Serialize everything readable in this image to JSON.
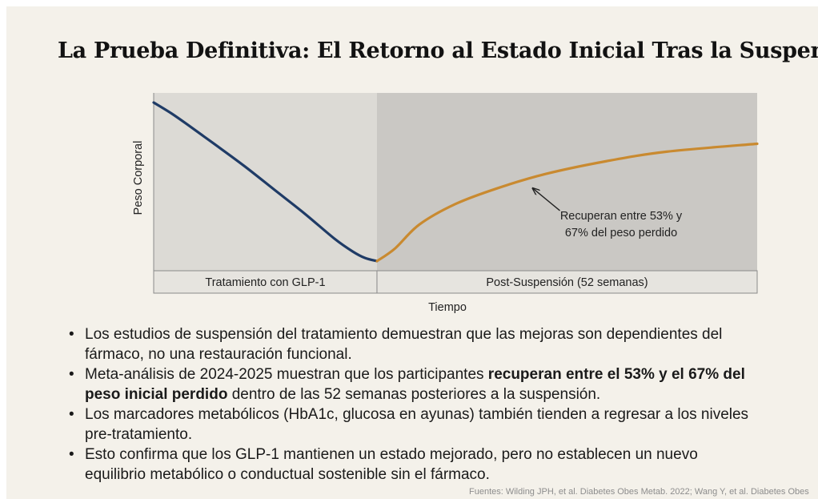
{
  "title": "La Prueba Definitiva: El Retorno al Estado Inicial Tras la Suspensió",
  "chart_data": {
    "type": "line",
    "xlabel": "Tiempo",
    "ylabel": "Peso Corporal",
    "x_axis_units": "fracción del eje temporal",
    "regions": [
      {
        "label": "Tratamiento con GLP-1",
        "x_start": 0,
        "x_end": 0.37,
        "fill": "#dcdad5"
      },
      {
        "label": "Post-Suspensión (52 semanas)",
        "x_start": 0.37,
        "x_end": 1.0,
        "fill": "#cac8c4"
      }
    ],
    "series": [
      {
        "name": "Tratamiento",
        "color": "#1f3b66",
        "x": [
          0,
          0.03,
          0.06,
          0.1,
          0.15,
          0.2,
          0.25,
          0.3,
          0.33,
          0.35,
          0.37
        ],
        "y": [
          1.0,
          0.93,
          0.85,
          0.74,
          0.6,
          0.45,
          0.3,
          0.14,
          0.06,
          0.02,
          0.0
        ]
      },
      {
        "name": "Post-Suspensión",
        "color": "#c98a30",
        "x": [
          0.37,
          0.4,
          0.44,
          0.5,
          0.57,
          0.65,
          0.75,
          0.85,
          1.0
        ],
        "y": [
          0.0,
          0.08,
          0.23,
          0.36,
          0.46,
          0.55,
          0.63,
          0.69,
          0.74
        ]
      }
    ],
    "annotation": {
      "lines": [
        "Recuperan entre 53% y",
        "67% del peso perdido"
      ],
      "arrow_target": {
        "x": 0.62,
        "y": 0.48
      }
    },
    "ylim": [
      0,
      1
    ],
    "xlim": [
      0,
      1
    ]
  },
  "bullets": [
    {
      "line1": [
        {
          "text": "Los estudios de suspensión del tratamiento demuestran que las mejoras son dependientes del"
        }
      ],
      "line2": [
        {
          "text": "fármaco, no una restauración funcional."
        }
      ]
    },
    {
      "line1": [
        {
          "text": "Meta-análisis de 2024-2025 muestran que los participantes "
        },
        {
          "text": "recuperan entre el 53% y el 67% del",
          "bold": true
        }
      ],
      "line2": [
        {
          "text": "peso inicial perdido",
          "bold": true
        },
        {
          "text": " dentro de las 52 semanas posteriores a la suspensión."
        }
      ]
    },
    {
      "line1": [
        {
          "text": "Los marcadores metabólicos (HbA1c, glucosa en ayunas) también tienden a regresar a los niveles"
        }
      ],
      "line2": [
        {
          "text": "pre-tratamiento."
        }
      ]
    },
    {
      "line1": [
        {
          "text": "Esto confirma que los GLP-1 mantienen un estado mejorado, pero no establecen un nuevo"
        }
      ],
      "line2": [
        {
          "text": "equilibrio metabólico o conductual sostenible sin el fármaco."
        }
      ]
    }
  ],
  "footer": "Fuentes: Wilding JPH, et al. Diabetes Obes Metab. 2022; Wang Y, et al. Diabetes Obes"
}
